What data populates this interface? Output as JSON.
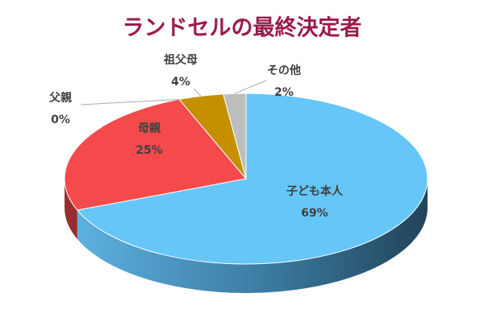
{
  "chart_data": {
    "type": "pie",
    "title": "ランドセルの最終決定者",
    "categories": [
      "子ども本人",
      "母親",
      "父親",
      "祖父母",
      "その他"
    ],
    "values": [
      69,
      25,
      0,
      4,
      2
    ],
    "value_labels": [
      "69%",
      "25%",
      "0%",
      "4%",
      "2%"
    ],
    "colors": [
      "#66c6f8",
      "#f54a4c",
      "#7a9bd0",
      "#c49000",
      "#bdbdbd"
    ]
  }
}
